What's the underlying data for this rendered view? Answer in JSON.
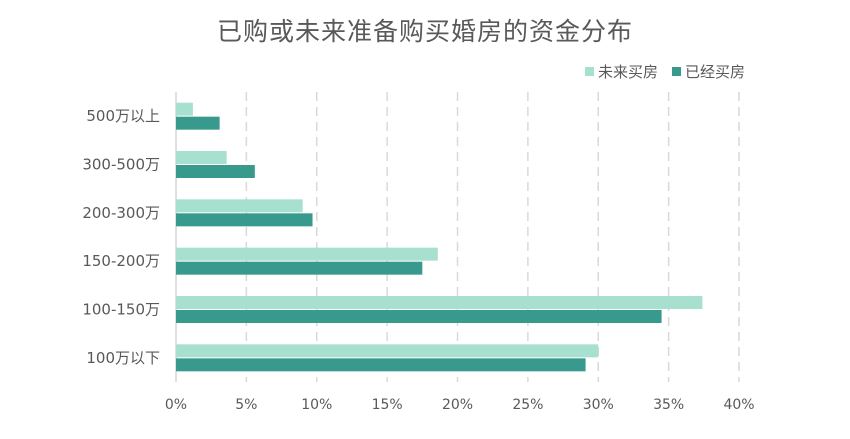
{
  "chart_data": {
    "type": "bar",
    "orientation": "horizontal",
    "title": "已购或未来准备购买婚房的资金分布",
    "categories": [
      "500万以上",
      "300-500万",
      "200-300万",
      "150-200万",
      "100-150万",
      "100万以下"
    ],
    "series": [
      {
        "name": "未来买房",
        "color": "#a8e0cf",
        "values": [
          1.2,
          3.6,
          9.0,
          18.6,
          37.4,
          30.0
        ]
      },
      {
        "name": "已经买房",
        "color": "#379a8c",
        "values": [
          3.1,
          5.6,
          9.7,
          17.5,
          34.5,
          29.1
        ]
      }
    ],
    "xlim": [
      0,
      40
    ],
    "xticks": [
      "0%",
      "5%",
      "10%",
      "15%",
      "20%",
      "25%",
      "30%",
      "35%",
      "40%"
    ],
    "grid": true,
    "legend_position": "top-right"
  }
}
